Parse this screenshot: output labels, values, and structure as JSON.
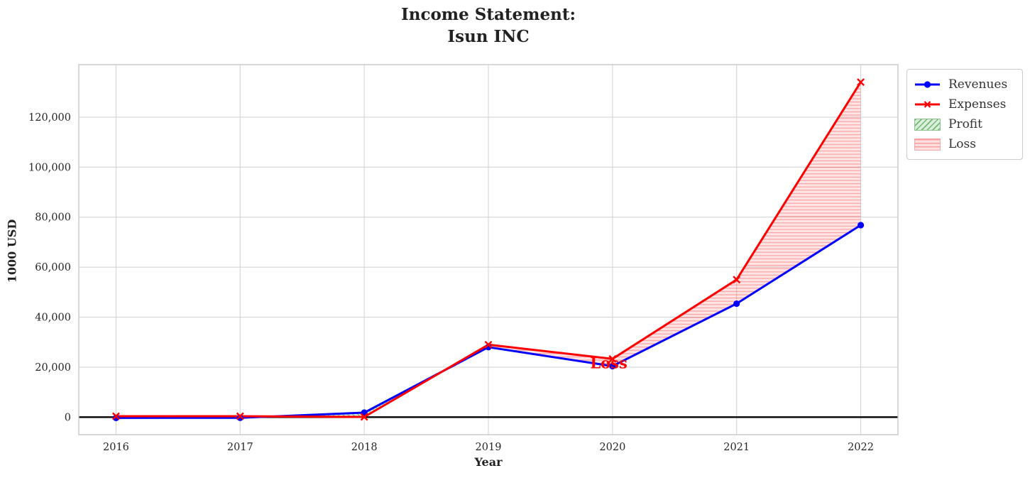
{
  "chart_data": {
    "type": "line",
    "title": "Income Statement:\nIsun INC",
    "xlabel": "Year",
    "ylabel": "1000 USD",
    "x": [
      2016,
      2017,
      2018,
      2019,
      2020,
      2021,
      2022
    ],
    "series": [
      {
        "name": "Revenues",
        "color": "#0000ff",
        "marker": "circle",
        "values": [
          -300,
          -250,
          1800,
          28000,
          20400,
          45400,
          76800
        ]
      },
      {
        "name": "Expenses",
        "color": "#ff0000",
        "marker": "x",
        "values": [
          400,
          400,
          100,
          29000,
          23300,
          55000,
          134000
        ]
      }
    ],
    "fills": [
      {
        "name": "Profit",
        "type": "profit",
        "fill_color": "rgba(0,128,0,0.12)",
        "hatch": "diagonal",
        "hatch_color": "rgba(0,128,0,0.45)"
      },
      {
        "name": "Loss",
        "type": "loss",
        "fill_color": "rgba(255,0,0,0.10)",
        "hatch": "horizontal",
        "hatch_color": "rgba(255,0,0,0.28)"
      }
    ],
    "xlim": [
      2015.7,
      2022.3
    ],
    "ylim": [
      -7000,
      141000
    ],
    "xticks": [
      2016,
      2017,
      2018,
      2019,
      2020,
      2021,
      2022
    ],
    "xtick_labels": [
      "2016",
      "2017",
      "2018",
      "2019",
      "2020",
      "2021",
      "2022"
    ],
    "yticks": [
      0,
      20000,
      40000,
      60000,
      80000,
      100000,
      120000
    ],
    "ytick_labels": [
      "0",
      "20,000",
      "40,000",
      "60,000",
      "80,000",
      "100,000",
      "120,000"
    ],
    "grid": true,
    "grid_color": "#d5d5d5",
    "spine_color": "#c4c4c4",
    "tick_color": "#262626",
    "zero_line": true,
    "zero_line_color": "#000000",
    "legend_position": "outside-top-right",
    "annotation": {
      "text": "Loss",
      "x": 2019.97,
      "y": 21500,
      "color": "#ff0000"
    }
  }
}
